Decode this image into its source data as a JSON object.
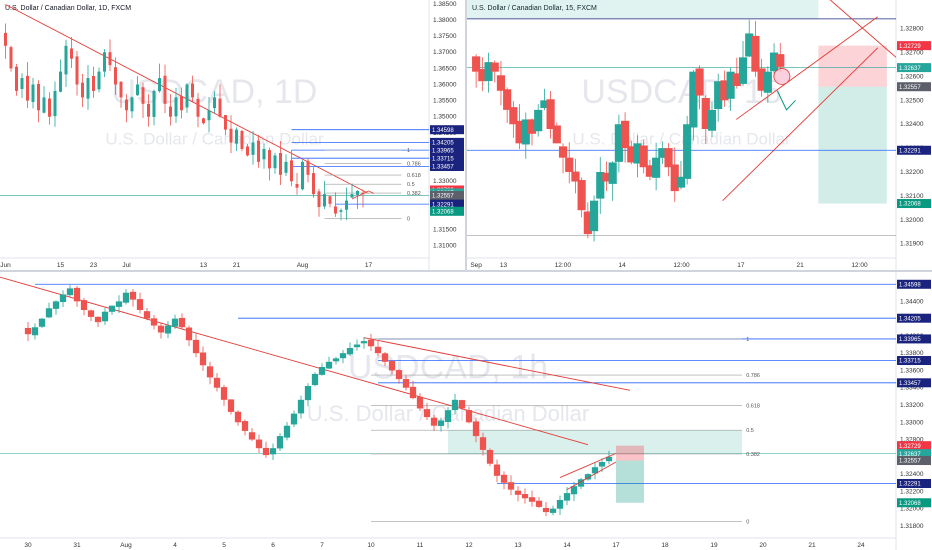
{
  "colors": {
    "up": "#26a69a",
    "down": "#ef5350",
    "blue": "#2962ff",
    "navy": "#1a237e",
    "trend": "#e53935",
    "red_badge": "#f23645",
    "teal_badge": "#26a69a",
    "gray_badge": "#5d606b",
    "green_badge": "#089981"
  },
  "panels": {
    "daily": {
      "title": "U.S. Dollar / Canadian Dollar, 1D, FXCM",
      "watermark_symbol": "USDCAD, 1D",
      "watermark_name": "U.S. Dollar / Canadian Dollar",
      "xticks": [
        {
          "label": "Jun",
          "v": 0
        },
        {
          "label": "15",
          "v": 10
        },
        {
          "label": "23",
          "v": 16
        },
        {
          "label": "Jul",
          "v": 22
        },
        {
          "label": "13",
          "v": 36
        },
        {
          "label": "21",
          "v": 42
        },
        {
          "label": "Aug",
          "v": 54
        },
        {
          "label": "17",
          "v": 66
        }
      ],
      "yticks": [
        "1.38500",
        "1.38000",
        "1.37500",
        "1.37000",
        "1.36500",
        "1.36000",
        "1.35500",
        "1.35000",
        "1.34500",
        "1.34000",
        "1.33500",
        "1.33000",
        "1.32500",
        "1.32000",
        "1.31500",
        "1.31000"
      ],
      "ylim": [
        1.3062,
        1.3862
      ],
      "xlim": [
        -1,
        77
      ],
      "fib_labels": [
        "1",
        "0.786",
        "0.618",
        "0.5",
        "0.382",
        "0"
      ],
      "badges": [
        {
          "text": "1.34598",
          "v": 1.34598,
          "type": "navy"
        },
        {
          "text": "1.34205",
          "v": 1.34205,
          "type": "navy"
        },
        {
          "text": "1.33965",
          "v": 1.33965,
          "type": "navy"
        },
        {
          "text": "1.33715",
          "v": 1.33715,
          "type": "navy"
        },
        {
          "text": "1.33457",
          "v": 1.33457,
          "type": "navy"
        },
        {
          "text": "1.32729",
          "v": 1.32729,
          "type": "red"
        },
        {
          "text": "1.32637",
          "v": 1.32637,
          "type": "teal"
        },
        {
          "text": "1.32557",
          "v": 1.32557,
          "type": "gray"
        },
        {
          "text": "1.32291",
          "v": 1.32291,
          "type": "navy"
        },
        {
          "text": "1.32068",
          "v": 1.32068,
          "type": "green"
        }
      ]
    },
    "m15": {
      "title": "U.S. Dollar / Canadian Dollar, 15, FXCM",
      "watermark_symbol": "USDCAD, 15",
      "watermark_name": "U.S. Dollar / Canadian Dollar",
      "xticks": [
        {
          "label": "Sep",
          "v": 0
        },
        {
          "label": "13",
          "v": 12
        },
        {
          "label": "12:00",
          "v": 38
        },
        {
          "label": "14",
          "v": 64
        },
        {
          "label": "12:00",
          "v": 90
        },
        {
          "label": "17",
          "v": 116
        },
        {
          "label": "21",
          "v": 142
        },
        {
          "label": "12:00",
          "v": 168
        }
      ],
      "yticks": [
        "1.32800",
        "1.32700",
        "1.32600",
        "1.32500",
        "1.32400",
        "1.32300",
        "1.32200",
        "1.32100",
        "1.32000",
        "1.31900"
      ],
      "ylim": [
        1.3184,
        1.3292
      ],
      "xlim": [
        -4,
        184
      ],
      "badges": [
        {
          "text": "1.32729",
          "v": 1.32729,
          "type": "red"
        },
        {
          "text": "1.32637",
          "v": 1.32637,
          "type": "teal"
        },
        {
          "text": "1.32557",
          "v": 1.32557,
          "type": "gray"
        },
        {
          "text": "1.32291",
          "v": 1.32291,
          "type": "navy"
        },
        {
          "text": "1.32068",
          "v": 1.32068,
          "type": "green"
        }
      ]
    },
    "h1": {
      "title": "",
      "watermark_symbol": "USDCAD, 1h",
      "watermark_name": "U.S. Dollar / Canadian Dollar",
      "xticks": [
        {
          "label": "30",
          "v": 0
        },
        {
          "label": "31",
          "v": 7
        },
        {
          "label": "Aug",
          "v": 14
        },
        {
          "label": "4",
          "v": 21
        },
        {
          "label": "5",
          "v": 28
        },
        {
          "label": "6",
          "v": 35
        },
        {
          "label": "7",
          "v": 42
        },
        {
          "label": "10",
          "v": 49
        },
        {
          "label": "11",
          "v": 56
        },
        {
          "label": "12",
          "v": 63
        },
        {
          "label": "13",
          "v": 70
        },
        {
          "label": "14",
          "v": 77
        },
        {
          "label": "17",
          "v": 84
        },
        {
          "label": "18",
          "v": 91
        },
        {
          "label": "19",
          "v": 98
        },
        {
          "label": "20",
          "v": 105
        },
        {
          "label": "21",
          "v": 112
        },
        {
          "label": "24",
          "v": 119
        }
      ],
      "yticks": [
        "1.34400",
        "1.34200",
        "1.34000",
        "1.33800",
        "1.33600",
        "1.33400",
        "1.33200",
        "1.33000",
        "1.32800",
        "1.32600",
        "1.32400",
        "1.32200",
        "1.32000",
        "1.31800"
      ],
      "ylim": [
        1.3166,
        1.3474
      ],
      "xlim": [
        -4,
        124
      ],
      "fib_labels": [
        "1",
        "0.786",
        "0.618",
        "0.5",
        "0.382",
        "0"
      ],
      "badges": [
        {
          "text": "1.34598",
          "v": 1.34598,
          "type": "navy"
        },
        {
          "text": "1.34205",
          "v": 1.34205,
          "type": "navy"
        },
        {
          "text": "1.33965",
          "v": 1.33965,
          "type": "navy"
        },
        {
          "text": "1.33715",
          "v": 1.33715,
          "type": "navy"
        },
        {
          "text": "1.33457",
          "v": 1.33457,
          "type": "navy"
        },
        {
          "text": "1.32729",
          "v": 1.32729,
          "type": "red"
        },
        {
          "text": "1.32637",
          "v": 1.32637,
          "type": "teal"
        },
        {
          "text": "1.32557",
          "v": 1.32557,
          "type": "gray"
        },
        {
          "text": "1.32291",
          "v": 1.32291,
          "type": "navy"
        },
        {
          "text": "1.32068",
          "v": 1.32068,
          "type": "green"
        }
      ]
    }
  },
  "chart_data": [
    {
      "type": "candlestick",
      "title": "U.S. Dollar / Canadian Dollar, 1D, FXCM",
      "ylim": [
        1.3062,
        1.3862
      ],
      "horizontal_levels": [
        1.34598,
        1.34205,
        1.33965,
        1.33715,
        1.33457,
        1.32729,
        1.32637,
        1.32557,
        1.32291,
        1.32068
      ],
      "fib": {
        "labels": [
          "1",
          "0.786",
          "0.618",
          "0.5",
          "0.382",
          "0"
        ],
        "high": 1.33965,
        "low": 1.3185
      },
      "trendline": {
        "from": [
          0,
          1.3848
        ],
        "to": [
          66,
          1.3262
        ]
      },
      "close_path": [
        1.372,
        1.365,
        1.358,
        1.362,
        1.355,
        1.36,
        1.352,
        1.356,
        1.35,
        1.358,
        1.364,
        1.372,
        1.368,
        1.36,
        1.356,
        1.362,
        1.358,
        1.364,
        1.37,
        1.366,
        1.36,
        1.356,
        1.352,
        1.356,
        1.36,
        1.354,
        1.35,
        1.358,
        1.362,
        1.354,
        1.35,
        1.356,
        1.352,
        1.36,
        1.356,
        1.35,
        1.348,
        1.352,
        1.356,
        1.35,
        1.346,
        1.342,
        1.346,
        1.34,
        1.338,
        1.342,
        1.336,
        1.34,
        1.334,
        1.338,
        1.332,
        1.336,
        1.33,
        1.328,
        1.336,
        1.332,
        1.326,
        1.322,
        1.326,
        1.323,
        1.32,
        1.321,
        1.324,
        1.326,
        1.327,
        1.326
      ]
    },
    {
      "type": "candlestick",
      "title": "U.S. Dollar / Canadian Dollar, 15, FXCM",
      "ylim": [
        1.3184,
        1.3292
      ],
      "horizontal_levels": [
        1.32841,
        1.32729,
        1.32637,
        1.32557,
        1.32291,
        1.31935
      ],
      "position": {
        "entry": 1.32557,
        "stop": 1.32729,
        "target": 1.32068
      },
      "close_path": [
        1.3262,
        1.3258,
        1.3266,
        1.3262,
        1.3254,
        1.3246,
        1.324,
        1.3232,
        1.3242,
        1.3236,
        1.3246,
        1.325,
        1.3238,
        1.3232,
        1.3226,
        1.322,
        1.3216,
        1.3204,
        1.3194,
        1.3208,
        1.322,
        1.3216,
        1.3224,
        1.324,
        1.323,
        1.3224,
        1.3232,
        1.3222,
        1.3218,
        1.3226,
        1.323,
        1.3222,
        1.3212,
        1.3218,
        1.324,
        1.3262,
        1.3252,
        1.3238,
        1.3246,
        1.3258,
        1.325,
        1.3262,
        1.3256,
        1.3268,
        1.3278,
        1.3262,
        1.3254,
        1.3262,
        1.327,
        1.3264
      ],
      "wedge": {
        "lower": [
          [
            108,
            1.3208
          ],
          [
            176,
            1.3272
          ]
        ],
        "upper": [
          [
            114,
            1.3242
          ],
          [
            176,
            1.3285
          ]
        ]
      }
    },
    {
      "type": "candlestick",
      "title": "",
      "ylim": [
        1.3166,
        1.3474
      ],
      "horizontal_levels": [
        1.34598,
        1.34205,
        1.33965,
        1.33715,
        1.33457,
        1.32729,
        1.32637,
        1.32557,
        1.32291,
        1.32068
      ],
      "fib": {
        "labels": [
          "1",
          "0.786",
          "0.618",
          "0.5",
          "0.382",
          "0"
        ],
        "high": 1.33965,
        "low": 1.3185
      },
      "trendlines": [
        {
          "from": [
            -4,
            1.3468
          ],
          "to": [
            80,
            1.3274
          ]
        },
        {
          "from": [
            48,
            1.3398
          ],
          "to": [
            86,
            1.3337
          ]
        }
      ],
      "close_path": [
        1.3402,
        1.341,
        1.342,
        1.3432,
        1.344,
        1.3448,
        1.3455,
        1.344,
        1.343,
        1.3422,
        1.3416,
        1.3428,
        1.3435,
        1.344,
        1.345,
        1.3442,
        1.343,
        1.342,
        1.3412,
        1.3404,
        1.3412,
        1.342,
        1.341,
        1.3395,
        1.338,
        1.3366,
        1.3352,
        1.334,
        1.3326,
        1.3312,
        1.33,
        1.329,
        1.328,
        1.327,
        1.3262,
        1.327,
        1.3284,
        1.3296,
        1.331,
        1.3326,
        1.3342,
        1.3356,
        1.3364,
        1.337,
        1.3374,
        1.338,
        1.3386,
        1.339,
        1.3394,
        1.3388,
        1.338,
        1.337,
        1.336,
        1.335,
        1.334,
        1.3328,
        1.3316,
        1.3306,
        1.3296,
        1.3302,
        1.3314,
        1.3326,
        1.3316,
        1.33,
        1.3284,
        1.3268,
        1.3252,
        1.3238,
        1.323,
        1.3222,
        1.3216,
        1.3212,
        1.3208,
        1.3202,
        1.3196,
        1.32,
        1.321,
        1.3218,
        1.3226,
        1.3234,
        1.324,
        1.3248,
        1.3254,
        1.326
      ]
    }
  ]
}
